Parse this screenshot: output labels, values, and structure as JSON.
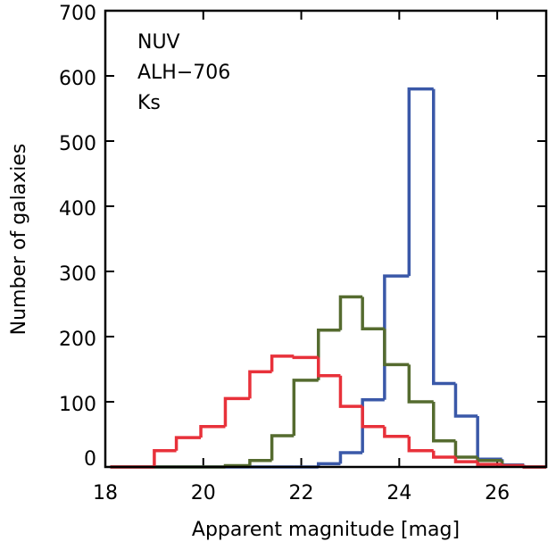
{
  "chart_data": {
    "type": "step-histogram",
    "xlabel": "Apparent magnitude [mag]",
    "ylabel": "Number of galaxies",
    "bins": [
      18.1,
      18.55,
      19.0,
      19.45,
      19.95,
      20.45,
      20.95,
      21.4,
      21.85,
      22.35,
      22.8,
      23.25,
      23.7,
      24.2,
      24.7,
      25.15,
      25.6,
      26.1,
      26.55,
      27.0
    ],
    "series": [
      {
        "name": "NUV",
        "color": "#3a58a8",
        "values": [
          0,
          0,
          0,
          0,
          0,
          0,
          0,
          0,
          0,
          5,
          22,
          103,
          293,
          580,
          128,
          78,
          12,
          3,
          0
        ]
      },
      {
        "name": "ALH−706",
        "color": "#556b2f",
        "values": [
          0,
          0,
          0,
          0,
          0,
          2,
          10,
          48,
          133,
          210,
          261,
          212,
          157,
          100,
          40,
          15,
          10,
          2,
          0
        ]
      },
      {
        "name": "Ks",
        "color": "#e8313a",
        "values": [
          0,
          0,
          25,
          45,
          62,
          105,
          146,
          170,
          168,
          140,
          93,
          62,
          47,
          25,
          15,
          8,
          4,
          2,
          0
        ]
      }
    ],
    "xlim": [
      18,
      27
    ],
    "ylim": [
      0,
      700
    ],
    "xticks": [
      18,
      20,
      22,
      24,
      26
    ],
    "yticks": [
      0,
      100,
      200,
      300,
      400,
      500,
      600,
      700
    ],
    "legend": "upper-left"
  }
}
